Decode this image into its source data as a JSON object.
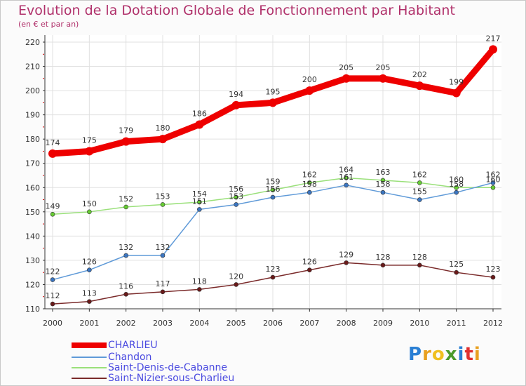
{
  "header": {
    "title": "Evolution de la Dotation Globale de Fonctionnement par Habitant",
    "subtitle": "(en € et par an)"
  },
  "colors": {
    "title": "#b0306a",
    "axis": "#333333",
    "grid": "#e0e0e0",
    "tick_mark": "#cc0000",
    "legend_text": "#4a4ae0"
  },
  "chart_data": {
    "type": "line",
    "x": [
      "2000",
      "2001",
      "2002",
      "2003",
      "2004",
      "2005",
      "2006",
      "2007",
      "2008",
      "2009",
      "2010",
      "2011",
      "2012"
    ],
    "xlabel": "",
    "ylabel": "",
    "ylim": [
      110,
      220
    ],
    "yticks": [
      110,
      120,
      130,
      140,
      150,
      160,
      170,
      180,
      190,
      200,
      210,
      220
    ],
    "grid": true,
    "legend_position": "bottom-left",
    "series": [
      {
        "name": "CHARLIEU",
        "color": "#ee0000",
        "marker": "#ee0000",
        "values": [
          174,
          175,
          179,
          180,
          186,
          194,
          195,
          200,
          205,
          205,
          202,
          199,
          217
        ]
      },
      {
        "name": "Chandon",
        "color": "#5f9ad8",
        "marker": "#3b75c0",
        "values": [
          122,
          126,
          132,
          132,
          151,
          153,
          156,
          158,
          161,
          158,
          155,
          158,
          162
        ]
      },
      {
        "name": "Saint-Denis-de-Cabanne",
        "color": "#9ae07a",
        "marker": "#66cc33",
        "values": [
          149,
          150,
          152,
          153,
          154,
          156,
          159,
          162,
          164,
          163,
          162,
          160,
          160
        ]
      },
      {
        "name": "Saint-Nizier-sous-Charlieu",
        "color": "#7a2a2a",
        "marker": "#6a1a1a",
        "values": [
          112,
          113,
          116,
          117,
          118,
          120,
          123,
          126,
          129,
          128,
          128,
          125,
          123
        ]
      }
    ]
  },
  "logo": {
    "text": "Proxiti",
    "colors": [
      "#2a7fd4",
      "#e8a020",
      "#f0c020",
      "#4a9a2a",
      "#2a7fd4",
      "#e03030",
      "#e8a020"
    ]
  }
}
